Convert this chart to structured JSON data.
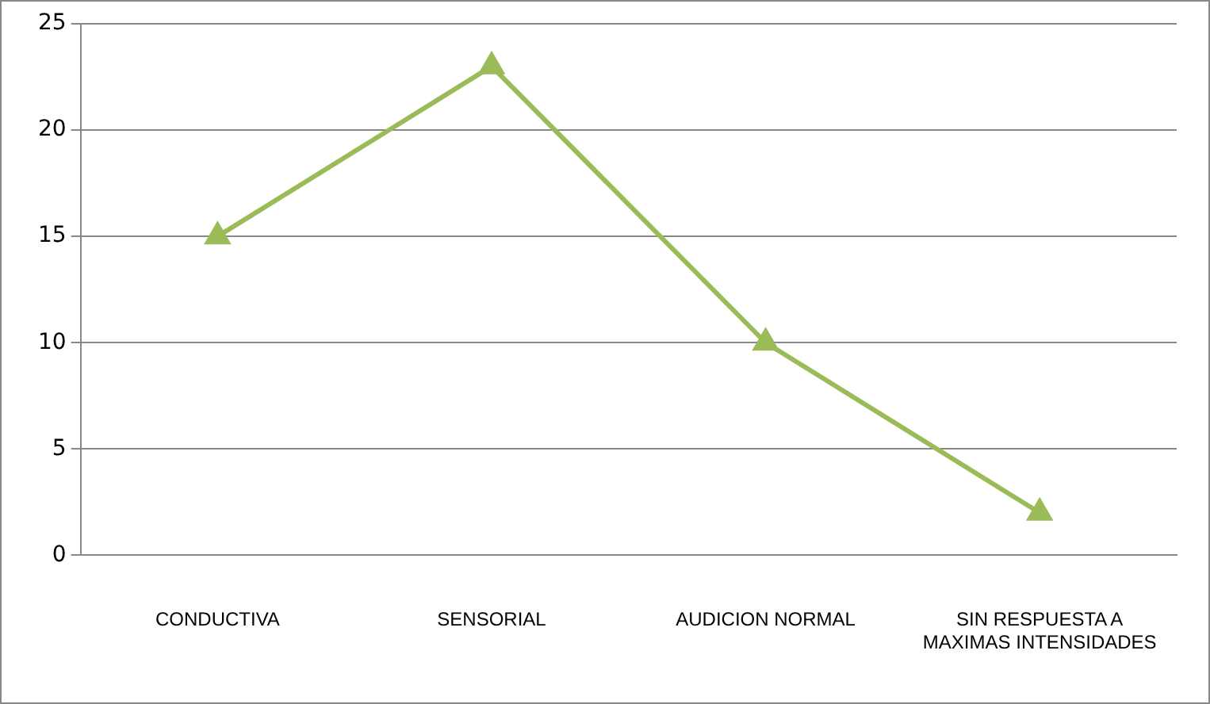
{
  "chart_data": {
    "type": "line",
    "categories": [
      "CONDUCTIVA",
      "SENSORIAL",
      "AUDICION NORMAL",
      "SIN RESPUESTA A MAXIMAS INTENSIDADES"
    ],
    "series": [
      {
        "color": "#9bbb59",
        "values": [
          15,
          23,
          10,
          2
        ]
      }
    ],
    "ylim": [
      0,
      25
    ],
    "yticks": [
      0,
      5,
      10,
      15,
      20,
      25
    ],
    "grid": "y",
    "legend": false,
    "marker": "triangle"
  }
}
